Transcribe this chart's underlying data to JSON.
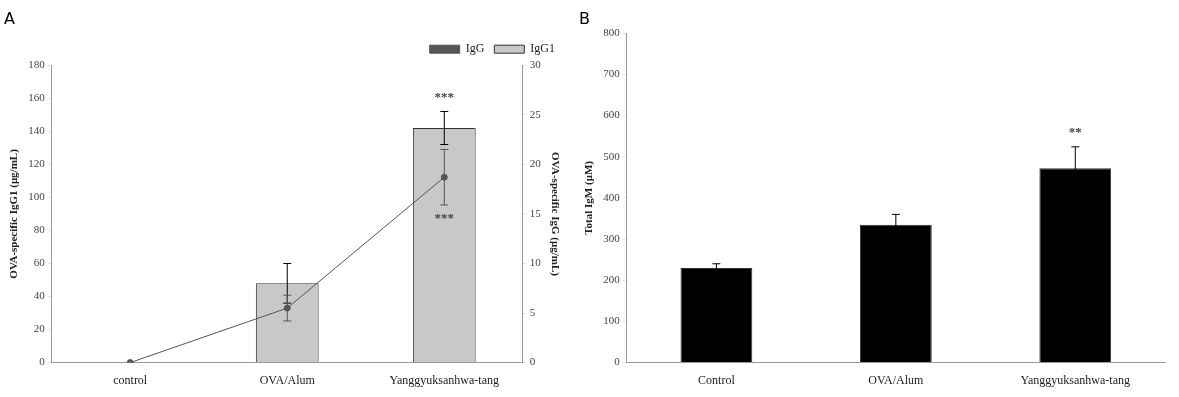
{
  "chart_data": [
    {
      "type": "bar",
      "title": "A",
      "categories": [
        "control",
        "OVA/Alum",
        "Yanggyuksanhwa-tang"
      ],
      "ylabel": "OVA-specific IgG1 (μg/mL)",
      "y2label": "OVA-specific IgG (μg/mL)",
      "ylim": [
        0,
        180
      ],
      "yticks": [
        0,
        20,
        40,
        60,
        80,
        100,
        120,
        140,
        160,
        180
      ],
      "y2lim": [
        0,
        30
      ],
      "y2ticks": [
        0,
        5,
        10,
        15,
        20,
        25,
        30
      ],
      "grid": false,
      "legend": "top right",
      "series": [
        {
          "name": "IgG1",
          "color": "#c8c8c8",
          "values": [
            0,
            48,
            142
          ],
          "errors": [
            null,
            12,
            10
          ]
        },
        {
          "name": "IgG",
          "type": "line",
          "axis": "y2",
          "color": "#555555",
          "marker": "circle",
          "values": [
            0,
            5.5,
            18.7
          ],
          "errors": [
            null,
            1.3,
            2.8
          ]
        }
      ],
      "annotations": [
        {
          "text": "***",
          "x": "Yanggyuksanhwa-tang",
          "y": 152
        },
        "***"
      ]
    },
    {
      "type": "bar",
      "title": "B",
      "categories": [
        "Control",
        "OVA/Alum",
        "Yanggyuksanhwa-tang"
      ],
      "ylabel": "Total IgM (μM)",
      "ylim": [
        0,
        800
      ],
      "yticks": [
        0,
        100,
        200,
        300,
        400,
        500,
        600,
        700,
        800
      ],
      "grid": false,
      "legend": false,
      "series": [
        {
          "color": "#000000",
          "values": [
            230,
            335,
            472
          ],
          "errors": [
            10,
            25,
            52
          ]
        }
      ],
      "annotations": [
        {
          "text": "**",
          "x": "Yanggyuksanhwa-tang",
          "y": 524
        }
      ]
    }
  ]
}
